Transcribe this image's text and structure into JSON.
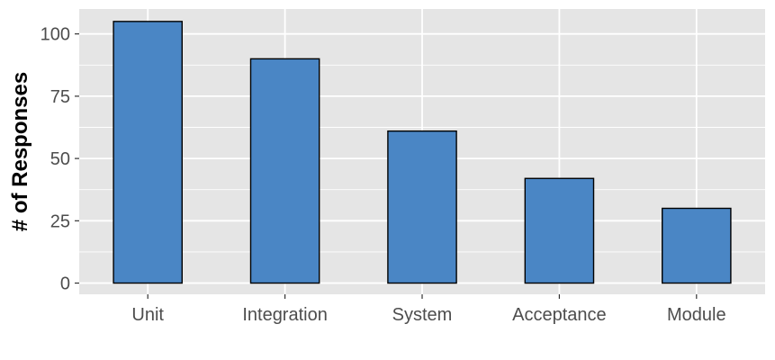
{
  "chart_data": {
    "type": "bar",
    "title": "",
    "xlabel": "",
    "ylabel": "# of Responses",
    "categories": [
      "Unit",
      "Integration",
      "System",
      "Acceptance",
      "Module"
    ],
    "values": [
      105,
      90,
      61,
      42,
      30
    ],
    "ylim": [
      -4.5,
      110
    ],
    "yticks": [
      0,
      25,
      50,
      75,
      100
    ],
    "grid": true,
    "legend": "none",
    "colors": {
      "bar_fill": "#4A86C5",
      "bar_stroke": "#000000",
      "panel_background": "#E5E5E5",
      "grid": "#FFFFFF",
      "tick_text": "#4D4D4D",
      "axis_title": "#000000"
    }
  }
}
